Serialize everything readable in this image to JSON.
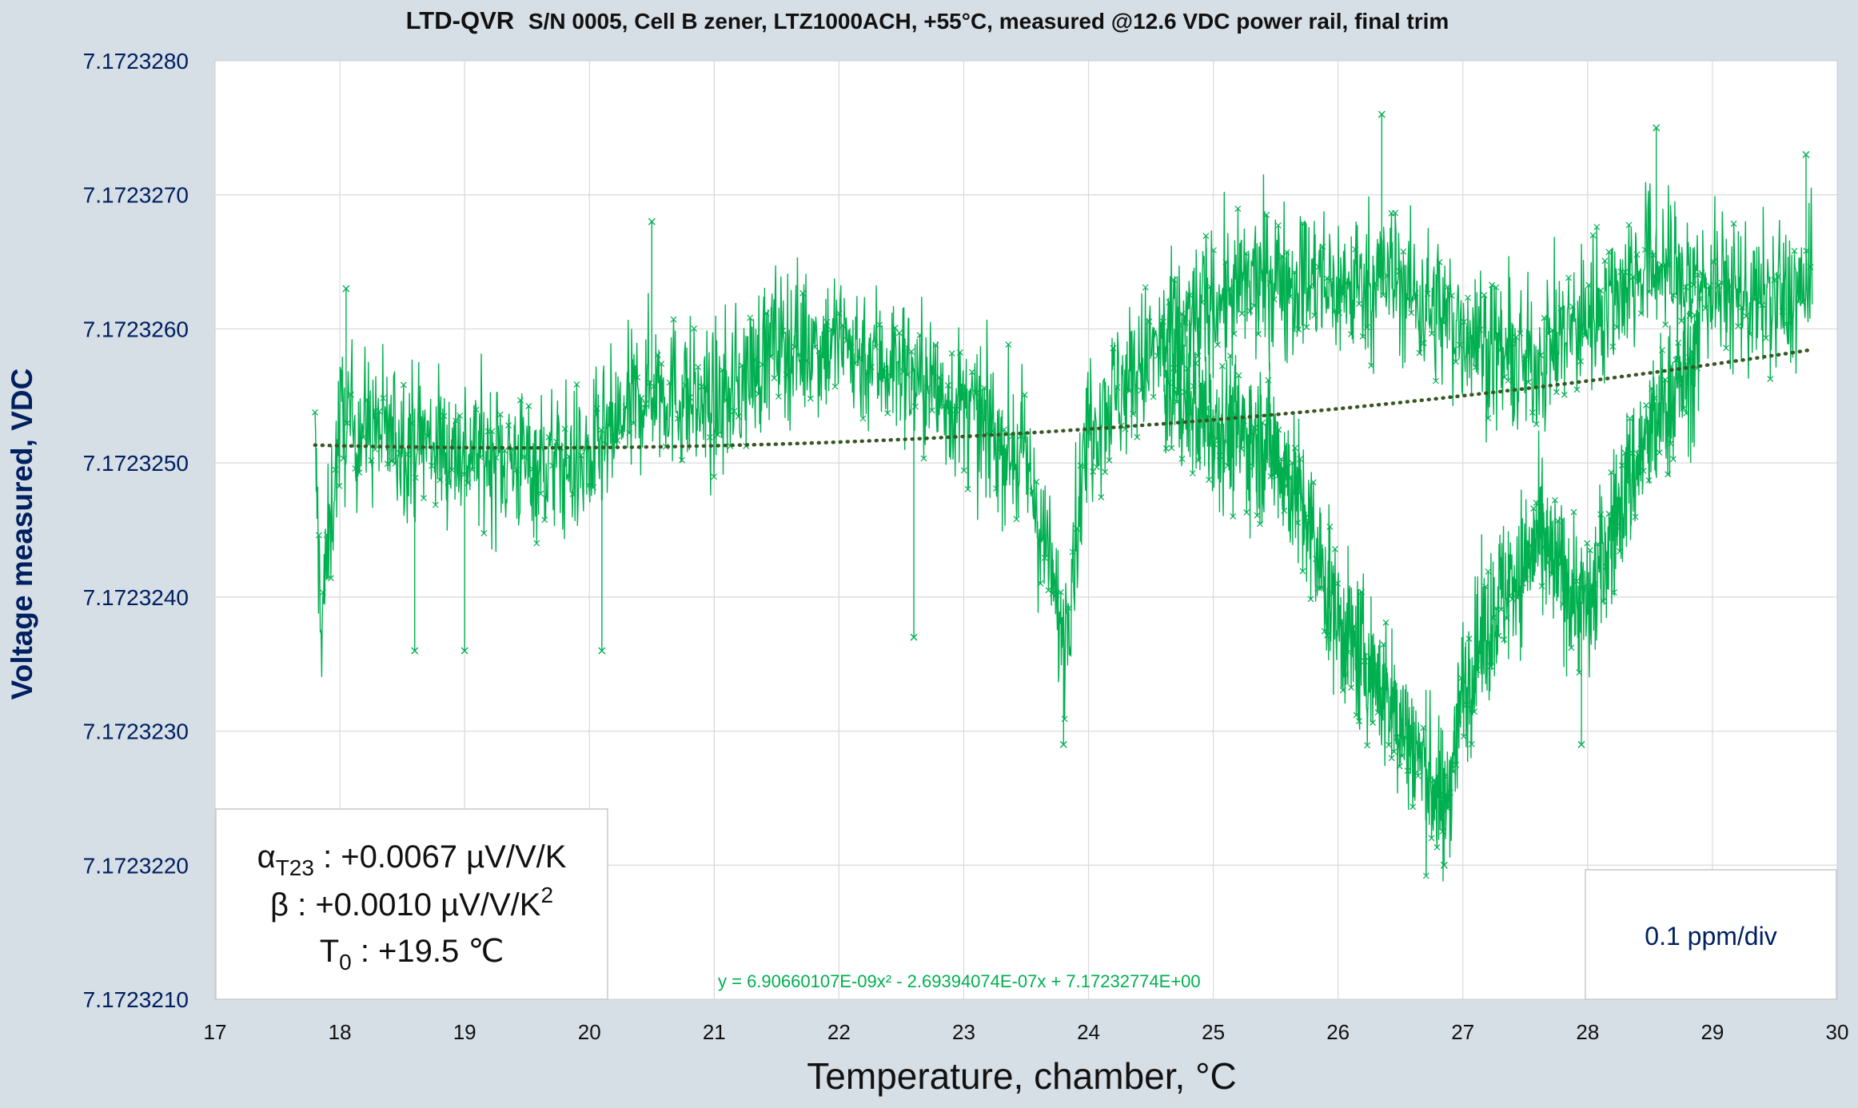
{
  "chart_data": {
    "type": "scatter",
    "title": {
      "brand": "LTD-QVR",
      "text": "S/N 0005, Cell B zener, LTZ1000ACH, +55°C, measured @12.6 VDC power rail, final trim"
    },
    "xlabel": "Temperature, chamber, °C",
    "ylabel": "Voltage measured, VDC",
    "xlim": [
      17,
      30
    ],
    "ylim": [
      7.172321,
      7.172328
    ],
    "x_ticks": [
      "17",
      "18",
      "19",
      "20",
      "21",
      "22",
      "23",
      "24",
      "25",
      "26",
      "27",
      "28",
      "29",
      "30"
    ],
    "y_ticks": [
      "7.1723210",
      "7.1723220",
      "7.1723230",
      "7.1723240",
      "7.1723250",
      "7.1723260",
      "7.1723270",
      "7.1723280"
    ],
    "grid": true,
    "series": [
      {
        "marker": "x",
        "color": "#00b050",
        "x_range": [
          17.8,
          29.8
        ],
        "outline_points": [
          [
            17.8,
            7.1723251
          ],
          [
            17.85,
            7.1723238
          ],
          [
            18.0,
            7.1723253
          ],
          [
            18.5,
            7.1723252
          ],
          [
            19.0,
            7.1723251
          ],
          [
            19.5,
            7.172325
          ],
          [
            20.0,
            7.172325
          ],
          [
            20.5,
            7.1723256
          ],
          [
            21.0,
            7.1723254
          ],
          [
            21.5,
            7.1723259
          ],
          [
            22.0,
            7.1723259
          ],
          [
            22.5,
            7.1723257
          ],
          [
            23.0,
            7.1723254
          ],
          [
            23.5,
            7.172325
          ],
          [
            23.8,
            7.1723237
          ],
          [
            24.0,
            7.1723253
          ],
          [
            24.5,
            7.1723258
          ],
          [
            25.0,
            7.1723262
          ],
          [
            25.5,
            7.1723264
          ],
          [
            26.0,
            7.1723263
          ],
          [
            26.4,
            7.1723264
          ],
          [
            27.0,
            7.172326
          ],
          [
            27.5,
            7.1723257
          ],
          [
            28.0,
            7.1723261
          ],
          [
            28.5,
            7.1723265
          ],
          [
            29.0,
            7.1723263
          ],
          [
            29.5,
            7.1723262
          ],
          [
            29.8,
            7.1723263
          ]
        ],
        "lower_branch_points": [
          [
            24.6,
            7.1723256
          ],
          [
            25.0,
            7.1723253
          ],
          [
            25.5,
            7.1723251
          ],
          [
            25.7,
            7.1723247
          ],
          [
            26.0,
            7.1723238
          ],
          [
            26.3,
            7.1723234
          ],
          [
            26.6,
            7.1723229
          ],
          [
            26.85,
            7.1723224
          ],
          [
            27.0,
            7.1723233
          ],
          [
            27.3,
            7.172324
          ],
          [
            27.6,
            7.1723244
          ],
          [
            28.0,
            7.1723239
          ],
          [
            28.3,
            7.1723248
          ],
          [
            28.6,
            7.1723254
          ],
          [
            28.9,
            7.1723258
          ]
        ],
        "spikes": [
          [
            18.05,
            7.1723263
          ],
          [
            18.6,
            7.1723236
          ],
          [
            19.0,
            7.1723236
          ],
          [
            20.1,
            7.1723236
          ],
          [
            20.5,
            7.1723268
          ],
          [
            22.6,
            7.1723237
          ],
          [
            23.8,
            7.1723229
          ],
          [
            26.35,
            7.1723276
          ],
          [
            26.85,
            7.172322
          ],
          [
            27.95,
            7.1723229
          ],
          [
            28.55,
            7.1723275
          ],
          [
            29.75,
            7.1723273
          ]
        ]
      }
    ],
    "trendline": {
      "type": "polynomial",
      "color": "#385723",
      "style": "dotted",
      "coefficients": [
        6.90660107e-09,
        -2.69394074e-07,
        7.17232774
      ],
      "equation_label": "y = 6.90660107E-09x² - 2.69394074E-07x + 7.17232774E+00"
    },
    "annotations": {
      "alpha_symbol": "α",
      "alpha_sub": "T23",
      "alpha_value": " : +0.0067 µV/V/K",
      "beta_text": "β : +0.0010 µV/V/K",
      "beta_sup": "2",
      "t0_symbol": "T",
      "t0_sub": "0",
      "t0_value": " : +19.5 ℃",
      "scale": "0.1 ppm/div"
    }
  }
}
